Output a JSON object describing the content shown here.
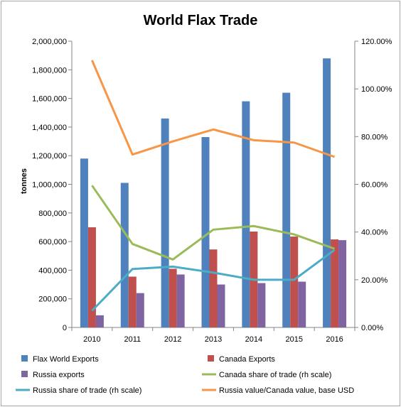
{
  "chart_data": {
    "type": "bar",
    "title": "World Flax Trade",
    "ylabel": "tonnes",
    "categories": [
      "2010",
      "2011",
      "2012",
      "2013",
      "2014",
      "2015",
      "2016"
    ],
    "ylim": [
      0,
      2000000
    ],
    "y_ticks": [
      "0",
      "200,000",
      "400,000",
      "600,000",
      "800,000",
      "1,000,000",
      "1,200,000",
      "1,400,000",
      "1,600,000",
      "1,800,000",
      "2,000,000"
    ],
    "y2lim": [
      0,
      1.2
    ],
    "y2_ticks": [
      "0.00%",
      "20.00%",
      "40.00%",
      "60.00%",
      "80.00%",
      "100.00%",
      "120.00%"
    ],
    "grid": false,
    "legend_position": "bottom",
    "bar_series": [
      {
        "name": "Flax World Exports",
        "color": "#4f81bd",
        "values": [
          1180000,
          1010000,
          1460000,
          1330000,
          1580000,
          1640000,
          1880000
        ]
      },
      {
        "name": "Canada Exports",
        "color": "#c0504d",
        "values": [
          700000,
          355000,
          410000,
          545000,
          670000,
          635000,
          615000
        ]
      },
      {
        "name": "Russia exports",
        "color": "#8064a2",
        "values": [
          85000,
          240000,
          370000,
          300000,
          310000,
          320000,
          610000
        ]
      }
    ],
    "line_series": [
      {
        "name": "Canada share of trade (rh scale)",
        "color": "#9bbb59",
        "axis": "right",
        "values": [
          0.595,
          0.35,
          0.285,
          0.41,
          0.425,
          0.39,
          0.33
        ]
      },
      {
        "name": "Russia share of trade (rh scale)",
        "color": "#4bacc6",
        "axis": "right",
        "values": [
          0.07,
          0.245,
          0.255,
          0.23,
          0.2,
          0.2,
          0.325
        ]
      },
      {
        "name": "Russia value/Canada value, base USD",
        "color": "#f79646",
        "axis": "right",
        "values": [
          1.12,
          0.725,
          0.78,
          0.83,
          0.785,
          0.775,
          0.715
        ]
      }
    ]
  }
}
